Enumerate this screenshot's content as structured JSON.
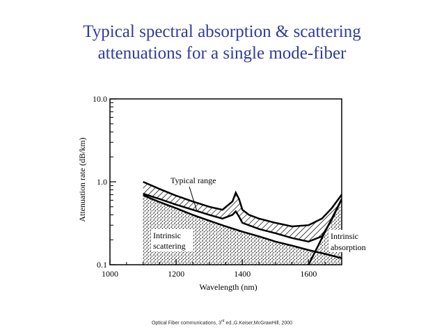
{
  "title": {
    "line1": "Typical spectral absorption & scattering",
    "line2": "attenuations for a single mode-fiber"
  },
  "caption": {
    "prefix": "Optical Fiber communications, 3",
    "sup": "rd",
    "suffix": " ed.,G.Keiser,McGrawHill, 2000"
  },
  "chart_data": {
    "type": "area",
    "xlabel": "Wavelength (nm)",
    "ylabel": "Attenuation rate (dB/km)",
    "xlim": [
      1000,
      1700
    ],
    "ylim": [
      0.1,
      10.0
    ],
    "yscale": "log",
    "x_ticks": [
      "1000",
      "1200",
      "1400",
      "1600"
    ],
    "y_ticks": [
      "0.1",
      "1.0",
      "10.0"
    ],
    "x_tick_values": [
      1000,
      1200,
      1400,
      1600
    ],
    "y_tick_values": [
      0.1,
      1.0,
      10.0
    ],
    "grid": false,
    "series": [
      {
        "name": "Typical range",
        "upper": {
          "x": [
            1100,
            1150,
            1200,
            1250,
            1300,
            1340,
            1370,
            1380,
            1390,
            1400,
            1420,
            1450,
            1500,
            1550,
            1600,
            1640,
            1670,
            1700
          ],
          "y": [
            1.0,
            0.82,
            0.68,
            0.58,
            0.5,
            0.46,
            0.58,
            0.74,
            0.62,
            0.46,
            0.4,
            0.36,
            0.32,
            0.29,
            0.3,
            0.36,
            0.48,
            0.7
          ]
        },
        "lower": {
          "x": [
            1100,
            1150,
            1200,
            1250,
            1300,
            1340,
            1370,
            1380,
            1390,
            1400,
            1450,
            1500,
            1550,
            1600,
            1640,
            1670,
            1700
          ],
          "y": [
            0.72,
            0.62,
            0.53,
            0.46,
            0.4,
            0.36,
            0.4,
            0.44,
            0.38,
            0.32,
            0.27,
            0.24,
            0.21,
            0.19,
            0.22,
            0.35,
            0.62
          ]
        }
      },
      {
        "name": "Intrinsic scattering",
        "x": [
          1100,
          1150,
          1200,
          1250,
          1300,
          1350,
          1400,
          1450,
          1500,
          1550,
          1600,
          1650,
          1700
        ],
        "y": [
          0.69,
          0.57,
          0.48,
          0.4,
          0.34,
          0.29,
          0.25,
          0.22,
          0.19,
          0.17,
          0.15,
          0.135,
          0.12
        ]
      },
      {
        "name": "Intrinsic absorption",
        "x": [
          1600,
          1650,
          1700
        ],
        "y": [
          0.1,
          0.25,
          0.62
        ]
      }
    ],
    "annotations": {
      "typical_range": "Typical range",
      "scattering_1": "Intrinsic",
      "scattering_2": "scattering",
      "absorption_1": "Intrinsic",
      "absorption_2": "absorption"
    }
  }
}
